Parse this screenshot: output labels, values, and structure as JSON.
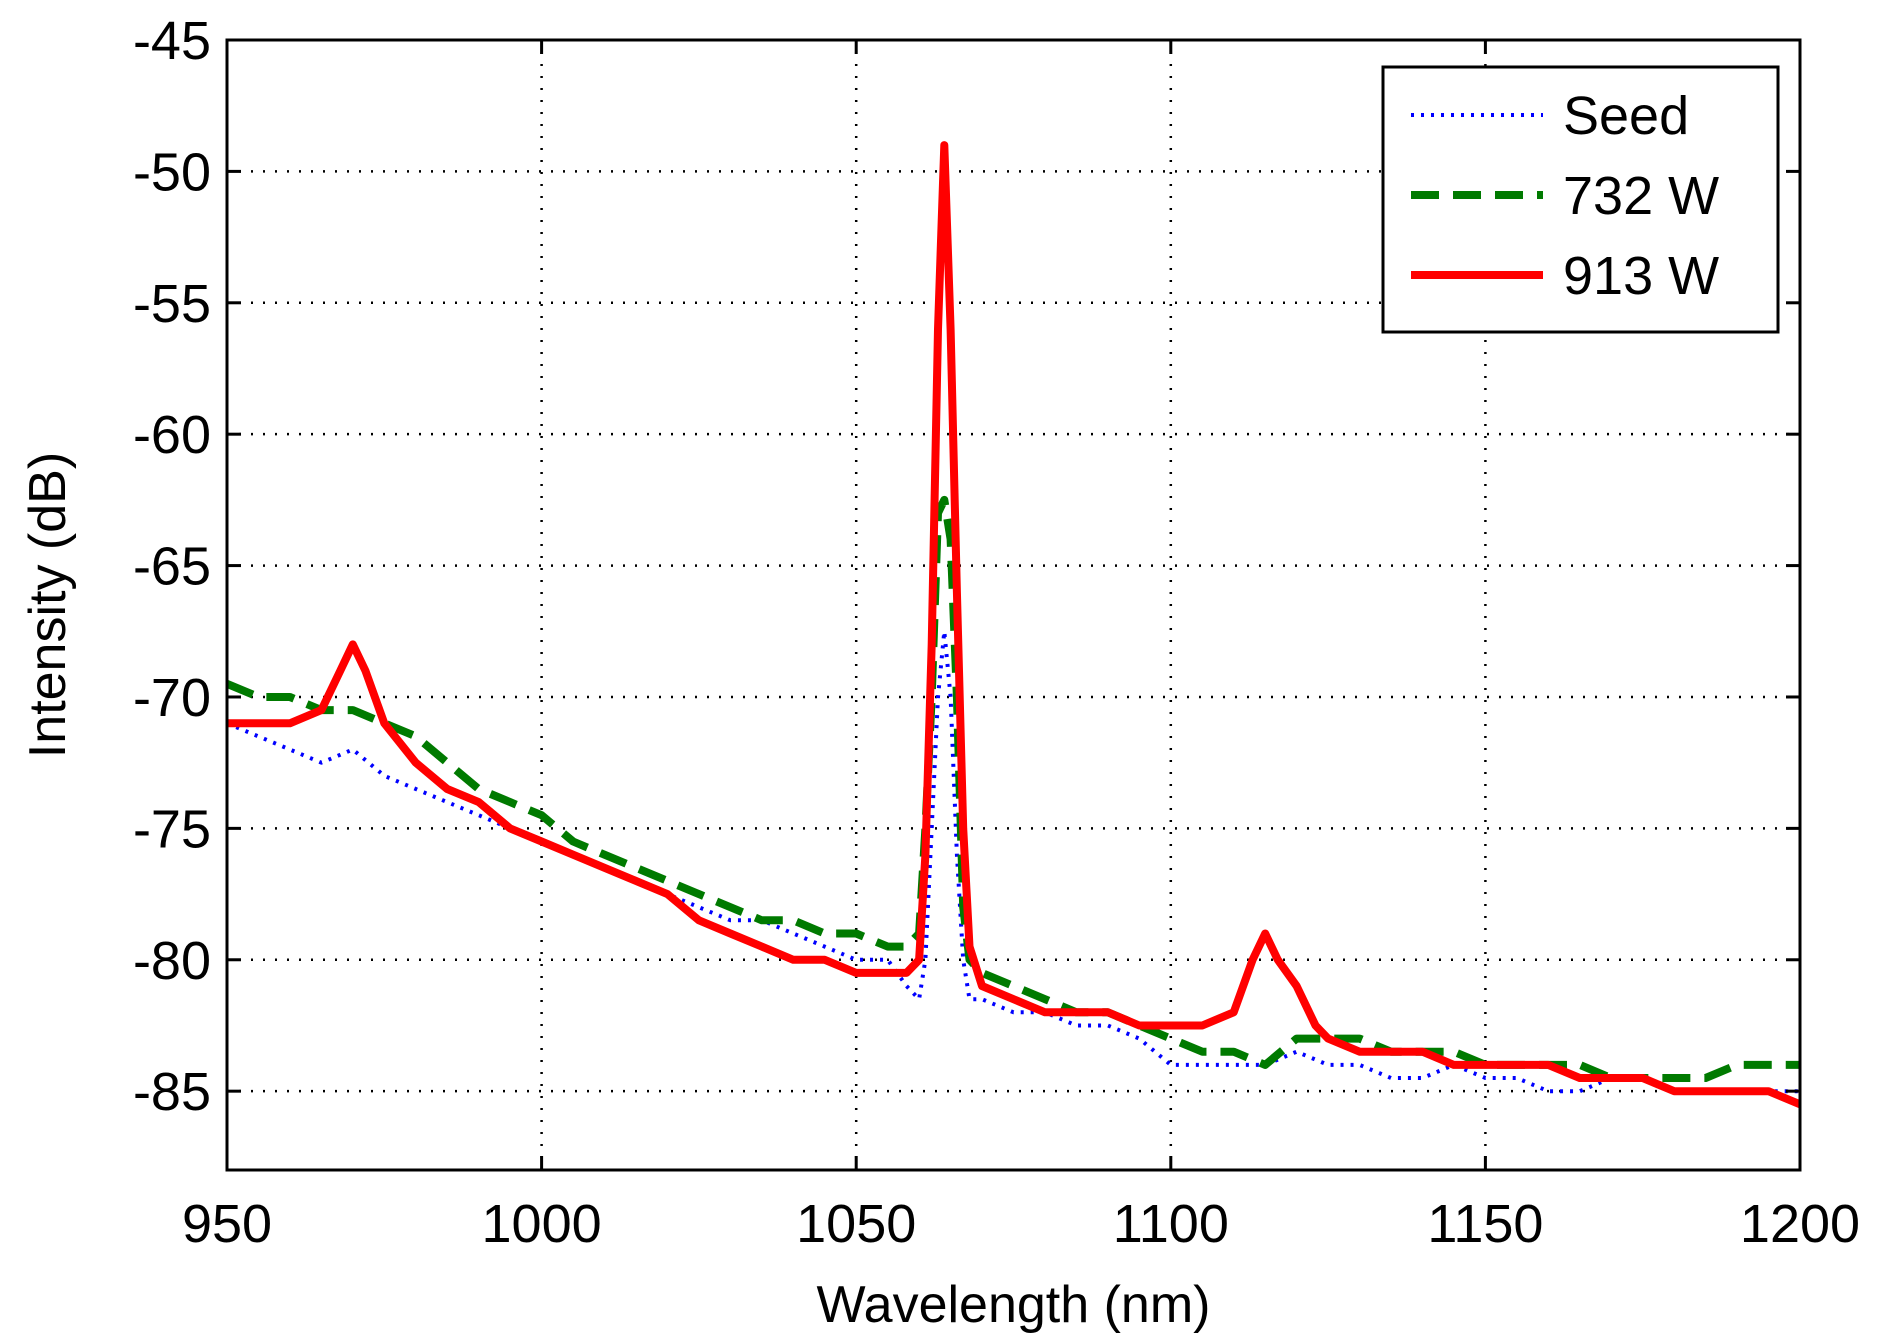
{
  "chart_data": {
    "type": "line",
    "title": "",
    "xlabel": "Wavelength  (nm)",
    "ylabel": "Intensity (dB)",
    "xlim": [
      950,
      1200
    ],
    "ylim": [
      -88,
      -45
    ],
    "xticks": [
      950,
      1000,
      1050,
      1100,
      1150,
      1200
    ],
    "yticks": [
      -45,
      -50,
      -55,
      -60,
      -65,
      -70,
      -75,
      -80,
      -85
    ],
    "grid": true,
    "legend_position": "top-right",
    "series": [
      {
        "name": "Seed",
        "color": "#0000ff",
        "style": "dotted",
        "x": [
          950,
          955,
          960,
          965,
          970,
          975,
          980,
          985,
          990,
          995,
          1000,
          1005,
          1010,
          1015,
          1020,
          1025,
          1030,
          1035,
          1040,
          1045,
          1050,
          1055,
          1058,
          1060,
          1061,
          1062,
          1063,
          1064,
          1065,
          1066,
          1067,
          1068,
          1070,
          1075,
          1080,
          1085,
          1090,
          1095,
          1100,
          1105,
          1110,
          1115,
          1120,
          1125,
          1130,
          1135,
          1140,
          1145,
          1150,
          1155,
          1160,
          1165,
          1170,
          1175,
          1180,
          1185,
          1190,
          1195,
          1200
        ],
        "y": [
          -71,
          -71.5,
          -72,
          -72.5,
          -72,
          -73,
          -73.5,
          -74,
          -74.5,
          -75,
          -75.5,
          -76,
          -76.5,
          -77,
          -77.5,
          -78,
          -78.5,
          -78.5,
          -79,
          -79.5,
          -80,
          -80,
          -81,
          -81.5,
          -80,
          -75,
          -70,
          -67.5,
          -70,
          -76,
          -80,
          -81.5,
          -81.5,
          -82,
          -82,
          -82.5,
          -82.5,
          -83,
          -84,
          -84,
          -84,
          -84,
          -83.5,
          -84,
          -84,
          -84.5,
          -84.5,
          -84,
          -84.5,
          -84.5,
          -85,
          -85,
          -84.5,
          -84.5,
          -85,
          -85,
          -85,
          -85,
          -85
        ]
      },
      {
        "name": "732 W",
        "color": "#007a00",
        "style": "dashed",
        "x": [
          950,
          955,
          960,
          965,
          970,
          975,
          980,
          985,
          990,
          995,
          1000,
          1005,
          1010,
          1015,
          1020,
          1025,
          1030,
          1035,
          1040,
          1045,
          1050,
          1055,
          1058,
          1060,
          1061,
          1062,
          1063,
          1064,
          1065,
          1066,
          1067,
          1068,
          1070,
          1075,
          1080,
          1085,
          1090,
          1095,
          1100,
          1105,
          1110,
          1115,
          1120,
          1125,
          1130,
          1135,
          1140,
          1145,
          1150,
          1155,
          1160,
          1165,
          1170,
          1175,
          1180,
          1185,
          1190,
          1195,
          1200
        ],
        "y": [
          -69.5,
          -70,
          -70,
          -70.5,
          -70.5,
          -71,
          -71.5,
          -72.5,
          -73.5,
          -74,
          -74.5,
          -75.5,
          -76,
          -76.5,
          -77,
          -77.5,
          -78,
          -78.5,
          -78.5,
          -79,
          -79,
          -79.5,
          -79.5,
          -79,
          -75,
          -70,
          -63,
          -62.5,
          -64,
          -70,
          -78,
          -80,
          -80.5,
          -81,
          -81.5,
          -82,
          -82,
          -82.5,
          -83,
          -83.5,
          -83.5,
          -84,
          -83,
          -83,
          -83,
          -83.5,
          -83.5,
          -83.5,
          -84,
          -84,
          -84,
          -84,
          -84.5,
          -84.5,
          -84.5,
          -84.5,
          -84,
          -84,
          -84
        ]
      },
      {
        "name": "913 W",
        "color": "#ff0000",
        "style": "solid",
        "x": [
          950,
          955,
          960,
          965,
          968,
          970,
          972,
          975,
          980,
          985,
          990,
          995,
          1000,
          1005,
          1010,
          1015,
          1020,
          1025,
          1030,
          1035,
          1040,
          1045,
          1050,
          1055,
          1058,
          1060,
          1061,
          1062,
          1063,
          1064,
          1065,
          1066,
          1067,
          1068,
          1070,
          1075,
          1080,
          1085,
          1090,
          1095,
          1100,
          1105,
          1110,
          1113,
          1115,
          1117,
          1120,
          1123,
          1125,
          1130,
          1135,
          1140,
          1145,
          1150,
          1155,
          1160,
          1165,
          1170,
          1175,
          1180,
          1185,
          1190,
          1195,
          1200
        ],
        "y": [
          -71,
          -71,
          -71,
          -70.5,
          -69,
          -68,
          -69,
          -71,
          -72.5,
          -73.5,
          -74,
          -75,
          -75.5,
          -76,
          -76.5,
          -77,
          -77.5,
          -78.5,
          -79,
          -79.5,
          -80,
          -80,
          -80.5,
          -80.5,
          -80.5,
          -80,
          -76,
          -68,
          -56,
          -49,
          -56,
          -66,
          -75,
          -79.5,
          -81,
          -81.5,
          -82,
          -82,
          -82,
          -82.5,
          -82.5,
          -82.5,
          -82,
          -80,
          -79,
          -80,
          -81,
          -82.5,
          -83,
          -83.5,
          -83.5,
          -83.5,
          -84,
          -84,
          -84,
          -84,
          -84.5,
          -84.5,
          -84.5,
          -85,
          -85,
          -85,
          -85,
          -85.5
        ]
      }
    ]
  }
}
